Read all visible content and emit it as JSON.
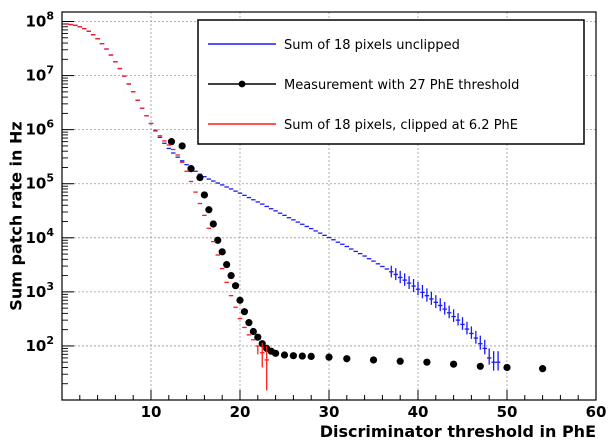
{
  "chart_data": {
    "type": "scatter",
    "title": "",
    "xlabel": "Discriminator threshold in PhE",
    "ylabel": "Sum patch rate in Hz",
    "xlim": [
      0,
      60
    ],
    "ylim": [
      10,
      150000000
    ],
    "yscale": "log",
    "grid": true,
    "legend_position": "top-right",
    "x_ticks": [
      10,
      20,
      30,
      40,
      50,
      60
    ],
    "x_tick_labels": [
      "10",
      "20",
      "30",
      "40",
      "50",
      "60"
    ],
    "y_ticks": [
      100,
      1000,
      10000,
      100000,
      1000000,
      10000000,
      100000000
    ],
    "y_tick_labels": [
      {
        "base": "10",
        "exp": "2"
      },
      {
        "base": "10",
        "exp": "3"
      },
      {
        "base": "10",
        "exp": "4"
      },
      {
        "base": "10",
        "exp": "5"
      },
      {
        "base": "10",
        "exp": "6"
      },
      {
        "base": "10",
        "exp": "7"
      },
      {
        "base": "10",
        "exp": "8"
      }
    ],
    "series": [
      {
        "name": "Sum of 18 pixels unclipped",
        "style": "errorbar-step",
        "color": "#1a1aff",
        "x": [
          0.5,
          1,
          1.5,
          2,
          2.5,
          3,
          3.5,
          4,
          4.5,
          5,
          5.5,
          6,
          6.5,
          7,
          7.5,
          8,
          8.5,
          9,
          9.5,
          10,
          10.5,
          11,
          11.5,
          12,
          12.5,
          13,
          13.5,
          14,
          14.5,
          15,
          15.5,
          16,
          16.5,
          17,
          17.5,
          18,
          18.5,
          19,
          19.5,
          20,
          20.5,
          21,
          21.5,
          22,
          22.5,
          23,
          23.5,
          24,
          24.5,
          25,
          25.5,
          26,
          26.5,
          27,
          27.5,
          28,
          28.5,
          29,
          29.5,
          30,
          30.5,
          31,
          31.5,
          32,
          32.5,
          33,
          33.5,
          34,
          34.5,
          35,
          35.5,
          36,
          36.5,
          37,
          37.5,
          38,
          38.5,
          39,
          39.5,
          40,
          40.5,
          41,
          41.5,
          42,
          42.5,
          43,
          43.5,
          44,
          44.5,
          45,
          45.5,
          46,
          46.5,
          47,
          47.5,
          48,
          48.5,
          49
        ],
        "y": [
          90000000,
          88000000,
          85000000,
          80000000,
          74000000,
          66000000,
          57000000,
          48000000,
          39000000,
          31000000,
          24000000,
          18000000,
          13500000,
          9800000,
          7000000,
          5000000,
          3500000,
          2500000,
          1800000,
          1300000,
          950000,
          720000,
          560000,
          450000,
          370000,
          310000,
          265000,
          225000,
          195000,
          170000,
          150000,
          135000,
          122000,
          112000,
          103000,
          95000,
          87000,
          80000,
          73000,
          67000,
          61000,
          55500,
          50500,
          46000,
          42000,
          38000,
          34500,
          31500,
          28500,
          26000,
          23500,
          21500,
          19500,
          17800,
          16200,
          14800,
          13400,
          12200,
          11100,
          10100,
          9200,
          8300,
          7600,
          6900,
          6200,
          5600,
          5100,
          4600,
          4100,
          3700,
          3300,
          2950,
          2650,
          2350,
          2100,
          1850,
          1650,
          1450,
          1280,
          1120,
          980,
          850,
          740,
          640,
          560,
          480,
          410,
          350,
          300,
          250,
          205,
          170,
          140,
          110,
          90,
          60,
          50,
          50
        ],
        "err_lo": [
          0,
          0,
          0,
          0,
          0,
          0,
          0,
          0,
          0,
          0,
          0,
          0,
          0,
          0,
          0,
          0,
          0,
          0,
          0,
          0,
          0,
          0,
          0,
          0,
          0,
          0,
          0,
          0,
          0,
          0,
          0,
          0,
          0,
          0,
          0,
          0,
          0,
          0,
          0,
          0,
          0,
          0,
          0,
          0,
          0,
          0,
          0,
          0,
          0,
          0,
          0,
          0,
          0,
          0,
          0,
          0,
          0,
          0,
          0,
          0,
          0,
          0,
          0,
          0,
          0,
          0,
          0,
          0,
          0,
          0,
          0,
          0,
          0,
          500,
          450,
          400,
          360,
          320,
          290,
          250,
          220,
          190,
          165,
          140,
          120,
          100,
          85,
          72,
          62,
          52,
          42,
          35,
          30,
          25,
          20,
          15,
          15,
          15
        ],
        "err_hi": [
          0,
          0,
          0,
          0,
          0,
          0,
          0,
          0,
          0,
          0,
          0,
          0,
          0,
          0,
          0,
          0,
          0,
          0,
          0,
          0,
          0,
          0,
          0,
          0,
          0,
          0,
          0,
          0,
          0,
          0,
          0,
          0,
          0,
          0,
          0,
          0,
          0,
          0,
          0,
          0,
          0,
          0,
          0,
          0,
          0,
          0,
          0,
          0,
          0,
          0,
          0,
          0,
          0,
          0,
          0,
          0,
          0,
          0,
          0,
          0,
          0,
          0,
          0,
          0,
          0,
          0,
          0,
          0,
          0,
          0,
          0,
          0,
          0,
          700,
          650,
          600,
          550,
          500,
          450,
          400,
          360,
          310,
          270,
          230,
          200,
          170,
          145,
          125,
          105,
          90,
          75,
          60,
          50,
          45,
          40,
          30,
          30,
          30
        ]
      },
      {
        "name": "Measurement with 27 PhE threshold",
        "style": "markers",
        "color": "#000000",
        "x": [
          12.3,
          13.5,
          14.5,
          15.5,
          16.0,
          16.5,
          17.0,
          17.5,
          18.0,
          18.5,
          19.0,
          19.5,
          20.0,
          20.5,
          21.0,
          21.5,
          22.0,
          22.5,
          23.0,
          23.5,
          24.0,
          25.0,
          26.0,
          27.0,
          28.0,
          30.0,
          32.0,
          35.0,
          38.0,
          41.0,
          44.0,
          47.0,
          50.0,
          54.0
        ],
        "y": [
          600000,
          500000,
          190000,
          130000,
          62000,
          33000,
          18000,
          9000,
          5500,
          3200,
          2000,
          1300,
          700,
          430,
          270,
          185,
          145,
          110,
          90,
          80,
          73,
          68,
          66,
          65,
          64,
          62,
          58,
          55,
          52,
          50,
          46,
          42,
          40,
          38
        ]
      },
      {
        "name": "Sum of 18 pixels, clipped at 6.2 PhE",
        "style": "errorbar-step",
        "color": "#ff1a1a",
        "x": [
          0.5,
          1,
          1.5,
          2,
          2.5,
          3,
          3.5,
          4,
          4.5,
          5,
          5.5,
          6,
          6.5,
          7,
          7.5,
          8,
          8.5,
          9,
          9.5,
          10,
          10.5,
          11,
          11.5,
          12,
          12.5,
          13,
          13.5,
          14,
          14.5,
          15,
          15.5,
          16,
          16.5,
          17,
          17.5,
          18,
          18.5,
          19,
          19.5,
          20,
          20.5,
          21,
          21.5,
          22,
          22.5,
          23
        ],
        "y": [
          90000000,
          88000000,
          85000000,
          80000000,
          74000000,
          66000000,
          57000000,
          48000000,
          39000000,
          31000000,
          24000000,
          18000000,
          13500000,
          9800000,
          7000000,
          5000000,
          3500000,
          2500000,
          1800000,
          1300000,
          980000,
          770000,
          620000,
          520000,
          430000,
          340000,
          250000,
          170000,
          110000,
          70000,
          43000,
          26000,
          15000,
          8500,
          4800,
          2700,
          1500,
          850,
          520,
          320,
          220,
          160,
          130,
          100,
          75,
          55
        ],
        "err_lo": [
          0,
          0,
          0,
          0,
          0,
          0,
          0,
          0,
          0,
          0,
          0,
          0,
          0,
          0,
          0,
          0,
          0,
          0,
          0,
          0,
          0,
          0,
          0,
          0,
          0,
          0,
          0,
          0,
          0,
          0,
          0,
          0,
          0,
          0,
          0,
          0,
          0,
          0,
          0,
          0,
          0,
          0,
          0,
          30,
          35,
          40
        ],
        "err_hi": [
          0,
          0,
          0,
          0,
          0,
          0,
          0,
          0,
          0,
          0,
          0,
          0,
          0,
          0,
          0,
          0,
          0,
          0,
          0,
          0,
          0,
          0,
          0,
          0,
          0,
          0,
          0,
          0,
          0,
          0,
          0,
          0,
          0,
          0,
          0,
          0,
          0,
          0,
          0,
          0,
          0,
          0,
          0,
          0,
          40,
          45
        ]
      }
    ],
    "legend": [
      {
        "label": "Sum of 18 pixels unclipped",
        "symbol": "line",
        "color": "#1a1aff"
      },
      {
        "label": "Measurement with 27 PhE threshold",
        "symbol": "marker-line",
        "color": "#000000"
      },
      {
        "label": "Sum of 18 pixels, clipped at 6.2 PhE",
        "symbol": "line",
        "color": "#ff1a1a"
      }
    ]
  }
}
